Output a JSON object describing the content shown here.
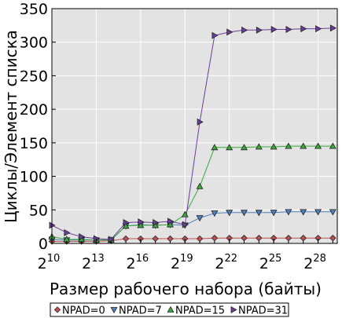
{
  "chart_data": {
    "type": "line",
    "xlabel": "Размер рабочего набора (байты)",
    "ylabel": "Циклы/Элемент списка",
    "ylim": [
      0,
      350
    ],
    "yticks": [
      0,
      50,
      100,
      150,
      200,
      250,
      300,
      350
    ],
    "x_exponents": [
      10,
      11,
      12,
      13,
      14,
      15,
      16,
      17,
      18,
      19,
      20,
      21,
      22,
      23,
      24,
      25,
      26,
      27,
      28,
      29
    ],
    "xtick_exponents": [
      10,
      13,
      16,
      19,
      22,
      25,
      28
    ],
    "xtick_base": "2",
    "grid": true,
    "legend_position": "bottom",
    "series": [
      {
        "name": "NPAD=0",
        "color": "#c0504d",
        "marker": "diamond",
        "values": [
          3,
          3,
          3,
          3,
          4,
          7,
          7,
          7,
          7,
          7,
          7,
          8,
          8,
          8,
          8,
          8,
          8,
          8,
          8,
          8
        ]
      },
      {
        "name": "NPAD=7",
        "color": "#4f81bd",
        "marker": "triangle-down",
        "values": [
          6,
          5,
          5,
          5,
          5,
          26,
          28,
          27,
          28,
          27,
          38,
          45,
          46,
          46,
          46,
          46,
          47,
          47,
          47,
          47
        ]
      },
      {
        "name": "NPAD=15",
        "color": "#3aa83a",
        "marker": "triangle-up",
        "values": [
          10,
          6,
          6,
          5,
          5,
          26,
          27,
          27,
          28,
          43,
          85,
          143,
          143,
          143,
          144,
          144,
          145,
          145,
          145,
          145
        ]
      },
      {
        "name": "NPAD=31",
        "color": "#6a3d9a",
        "marker": "triangle-right",
        "values": [
          27,
          16,
          10,
          7,
          6,
          31,
          32,
          31,
          33,
          28,
          181,
          310,
          315,
          318,
          318,
          319,
          319,
          320,
          320,
          321
        ]
      }
    ]
  }
}
